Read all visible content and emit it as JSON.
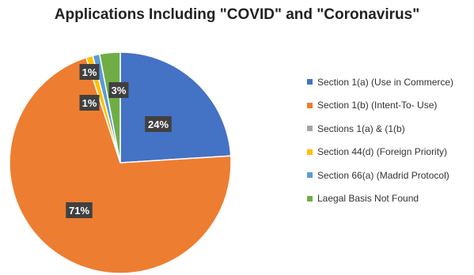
{
  "chart_data": {
    "type": "pie",
    "title": "Applications Including \"COVID\" and \"Coronavirus\"",
    "slices": [
      {
        "label": "Section 1(a) (Use in Commerce)",
        "value": 24,
        "data_label": "24%",
        "color": "#4472c4"
      },
      {
        "label": "Section 1(b) (Intent-To- Use)",
        "value": 71,
        "data_label": "71%",
        "color": "#ed7d31"
      },
      {
        "label": "Sections 1(a) & (1(b)",
        "value": 0,
        "data_label": "",
        "color": "#a5a5a5"
      },
      {
        "label": "Section 44(d) (Foreign Priority)",
        "value": 1,
        "data_label": "1%",
        "color": "#ffc000"
      },
      {
        "label": "Section 66(a) (Madrid Protocol)",
        "value": 1,
        "data_label": "1%",
        "color": "#5b9bd5"
      },
      {
        "label": "Laegal Basis Not Found",
        "value": 3,
        "data_label": "3%",
        "color": "#70ad47"
      }
    ],
    "legend_position": "right",
    "data_label_style": "white bold text on dark boxes"
  }
}
